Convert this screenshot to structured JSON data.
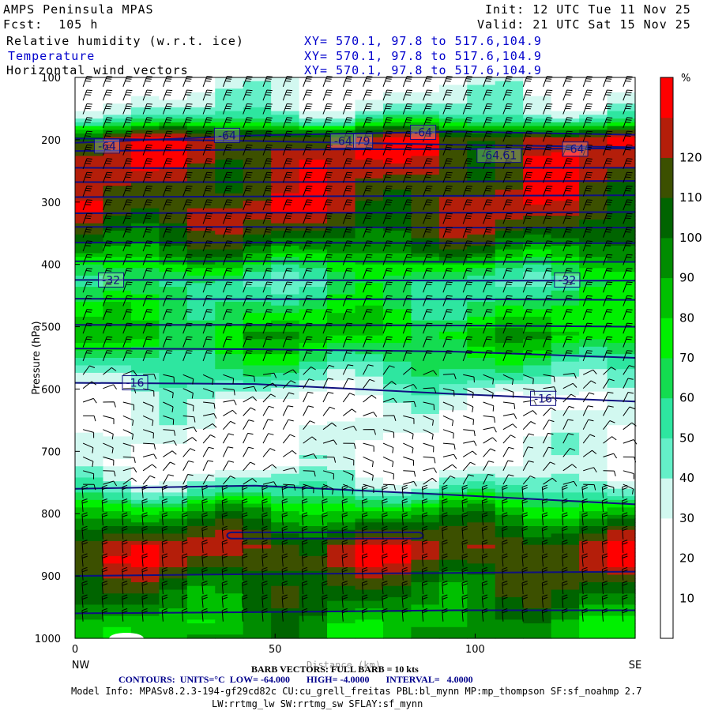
{
  "header": {
    "model_title": "AMPS Peninsula MPAS",
    "forecast": "Fcst:  105 h",
    "init": "Init: 12 UTC Tue 11 Nov 25",
    "valid": "Valid: 21 UTC Sat 15 Nov 25",
    "fields": [
      {
        "name": "Relative humidity (w.r.t. ice)",
        "xy": "XY= 570.1, 97.8 to 517.6,104.9",
        "color": "#000000"
      },
      {
        "name": "Temperature",
        "xy": "XY= 570.1, 97.8 to 517.6,104.9",
        "color": "#0000cc"
      },
      {
        "name": "Horizontal wind vectors",
        "xy": "XY= 570.1, 97.8 to 517.6,104.9",
        "color": "#000000"
      }
    ]
  },
  "footer": {
    "barb_note": "BARB VECTORS: FULL BARB = 10 kts",
    "distance_label": "Distance (km)",
    "contours": "CONTOURS:  UNITS=°C  LOW= -64.000       HIGH= -4.0000       INTERVAL=   4.0000",
    "model_info_1": "Model Info: MPASv8.2.3-194-gf29cd82c CU:cu_grell_freitas PBL:bl_mynn MP:mp_thompson SF:sf_noahmp 2.7",
    "model_info_2": "LW:rrtmg_lw SW:rrtmg_sw SFLAY:sf_mynn"
  },
  "chart_data": {
    "type": "heatmap",
    "title": "Relative humidity (w.r.t. ice)",
    "xlabel": "Distance (km)",
    "ylabel": "Pressure (hPa)",
    "xlim": [
      0,
      140
    ],
    "ylim": [
      1000,
      100
    ],
    "x_ticks": [
      0,
      50,
      100
    ],
    "y_ticks": [
      100,
      200,
      300,
      400,
      500,
      600,
      700,
      800,
      900,
      1000
    ],
    "x_end_labels": {
      "left": "NW",
      "right": "SE"
    },
    "colorbar": {
      "unit": "%",
      "levels": [
        10,
        20,
        30,
        40,
        50,
        60,
        70,
        80,
        90,
        100,
        110,
        120
      ],
      "colors": [
        "#ffffff",
        "#ffffff",
        "#ffffff",
        "#d2f8f0",
        "#64f0c8",
        "#2ee6a0",
        "#14dc50",
        "#00f000",
        "#00c000",
        "#008c00",
        "#006400",
        "#3c5000",
        "#b41e0a",
        "#ff0000"
      ]
    },
    "rh_profile": [
      {
        "p": 100,
        "rh": 15
      },
      {
        "p": 150,
        "rh": 30
      },
      {
        "p": 170,
        "rh": 55
      },
      {
        "p": 180,
        "rh": 85
      },
      {
        "p": 195,
        "rh": 112
      },
      {
        "p": 230,
        "rh": 115
      },
      {
        "p": 270,
        "rh": 108
      },
      {
        "p": 310,
        "rh": 112
      },
      {
        "p": 345,
        "rh": 100
      },
      {
        "p": 375,
        "rh": 85
      },
      {
        "p": 400,
        "rh": 62
      },
      {
        "p": 425,
        "rh": 45
      },
      {
        "p": 470,
        "rh": 58
      },
      {
        "p": 510,
        "rh": 72
      },
      {
        "p": 545,
        "rh": 55
      },
      {
        "p": 580,
        "rh": 38
      },
      {
        "p": 620,
        "rh": 18
      },
      {
        "p": 720,
        "rh": 15
      },
      {
        "p": 760,
        "rh": 40
      },
      {
        "p": 790,
        "rh": 72
      },
      {
        "p": 820,
        "rh": 95
      },
      {
        "p": 850,
        "rh": 112
      },
      {
        "p": 875,
        "rh": 110
      },
      {
        "p": 900,
        "rh": 98
      },
      {
        "p": 940,
        "rh": 88
      },
      {
        "p": 970,
        "rh": 78
      },
      {
        "p": 1000,
        "rh": 80
      }
    ],
    "temperature_contours_C": [
      {
        "label": "-64",
        "p": [
          205,
          193,
          187,
          192
        ]
      },
      {
        "label": "-64",
        "p": [
          198,
          202,
          208,
          212
        ]
      },
      {
        "label": "-64",
        "p": [
          218,
          216,
          215,
          214
        ]
      },
      {
        "label": "-60",
        "p": [
          245,
          246,
          245,
          245
        ]
      },
      {
        "label": "-56",
        "p": [
          268,
          268,
          267,
          266
        ]
      },
      {
        "label": "-52",
        "p": [
          292,
          291,
          290,
          289
        ]
      },
      {
        "label": "-48",
        "p": [
          318,
          317,
          317,
          316
        ]
      },
      {
        "label": "-44",
        "p": [
          340,
          340,
          341,
          341
        ]
      },
      {
        "label": "-40",
        "p": [
          365,
          365,
          366,
          366
        ]
      },
      {
        "label": "-36",
        "p": [
          395,
          395,
          396,
          396
        ]
      },
      {
        "label": "-32",
        "p": [
          425,
          425,
          426,
          426
        ]
      },
      {
        "label": "-28",
        "p": [
          455,
          456,
          456,
          457
        ]
      },
      {
        "label": "-24",
        "p": [
          497,
          497,
          498,
          500
        ]
      },
      {
        "label": "-20",
        "p": [
          535,
          536,
          540,
          550
        ]
      },
      {
        "label": "-16",
        "p": [
          590,
          592,
          608,
          620
        ]
      },
      {
        "label": "-12",
        "p": [
          760,
          755,
          770,
          785
        ]
      },
      {
        "label": "-8",
        "p": [
          900,
          897,
          895,
          893
        ]
      },
      {
        "label": "-4",
        "p": [
          960,
          958,
          955,
          955
        ]
      }
    ],
    "contour_labels": [
      {
        "text": "-64",
        "x": 38,
        "p": 193
      },
      {
        "text": "-64",
        "x": 8,
        "p": 210
      },
      {
        "text": "-64",
        "x": 67,
        "p": 202
      },
      {
        "text": "79",
        "x": 72,
        "p": 202
      },
      {
        "text": "-64",
        "x": 87,
        "p": 188
      },
      {
        "text": "-64.61",
        "x": 106,
        "p": 225
      },
      {
        "text": "-64",
        "x": 125,
        "p": 215
      },
      {
        "text": "-32",
        "x": 9,
        "p": 425
      },
      {
        "text": "-32",
        "x": 123,
        "p": 425
      },
      {
        "text": "-16",
        "x": 15,
        "p": 590
      },
      {
        "text": "-16",
        "x": 117,
        "p": 615
      }
    ]
  }
}
